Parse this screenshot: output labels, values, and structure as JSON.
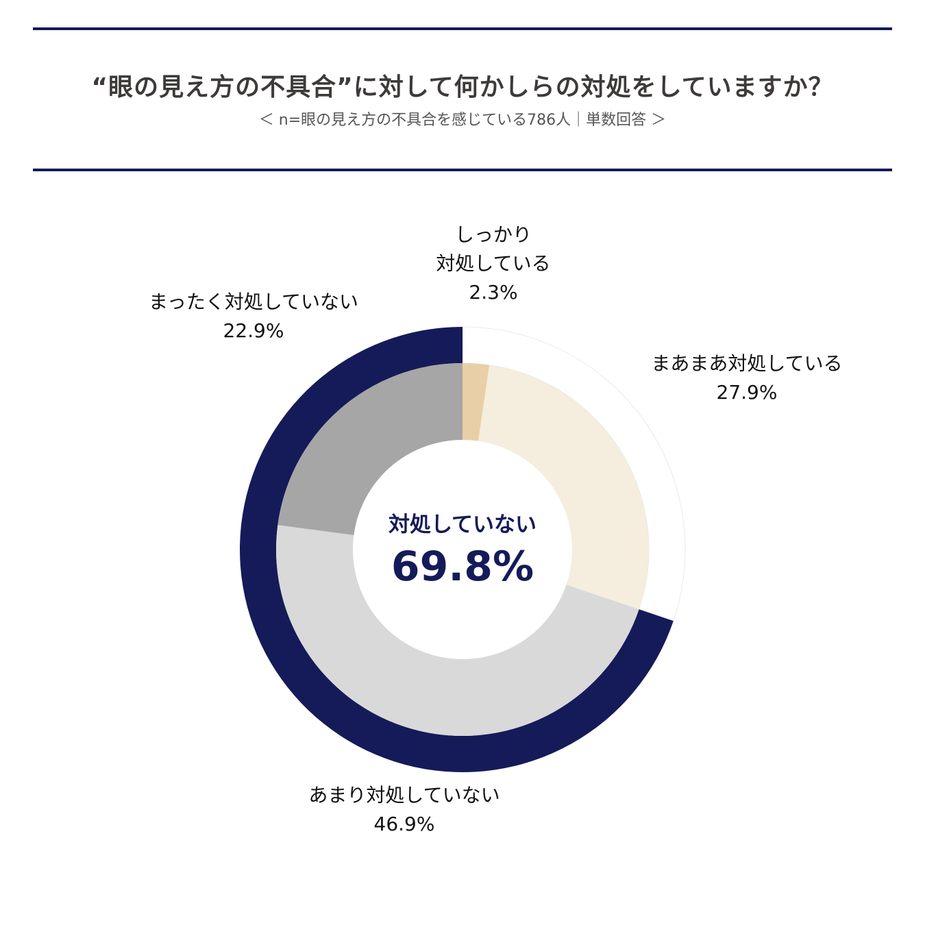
{
  "title": "“眼の見え方の不具合”に対して何かしらの対処をしていますか？",
  "subtitle": "＜ n=眼の見え方の不具合を感じている786人｜単数回答 ＞",
  "center": {
    "label": "対処していない",
    "value": "69.8%"
  },
  "colors": {
    "navy": "#151b58",
    "slice_1": "#e8cfa8",
    "slice_2": "#f5eddd",
    "slice_3": "#d9d9d9",
    "slice_4": "#a6a6a6"
  },
  "chart_data": {
    "type": "pie",
    "variant": "donut",
    "title": "“眼の見え方の不具合”に対して何かしらの対処をしていますか？",
    "slices": [
      {
        "label_line1": "しっかり",
        "label_line2": "対処している",
        "label": "しっかり対処している",
        "value": 2.3,
        "value_text": "2.3%",
        "color": "#e8cfa8"
      },
      {
        "label_line1": "まあまあ対処している",
        "label": "まあまあ対処している",
        "value": 27.9,
        "value_text": "27.9%",
        "color": "#f5eddd"
      },
      {
        "label_line1": "あまり対処していない",
        "label": "あまり対処していない",
        "value": 46.9,
        "value_text": "46.9%",
        "color": "#d9d9d9"
      },
      {
        "label_line1": "まったく対処していない",
        "label": "まったく対処していない",
        "value": 22.9,
        "value_text": "22.9%",
        "color": "#a6a6a6"
      }
    ],
    "outer_ring": {
      "label": "対処していない",
      "value": 69.8,
      "color": "#151b58"
    }
  }
}
